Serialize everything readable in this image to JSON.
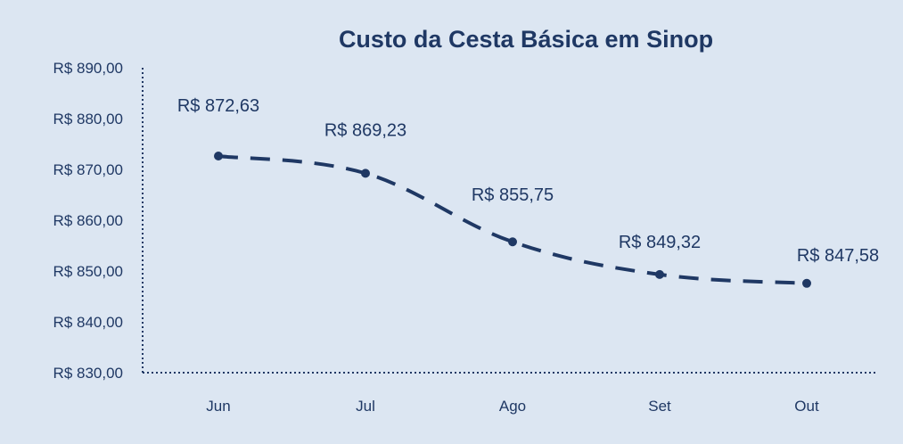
{
  "chart_data": {
    "type": "line",
    "title": "Custo da Cesta Básica em Sinop",
    "xlabel": "",
    "ylabel": "",
    "categories": [
      "Jun",
      "Jul",
      "Ago",
      "Set",
      "Out"
    ],
    "series": [
      {
        "values": [
          872.63,
          869.23,
          855.75,
          849.32,
          847.58
        ],
        "labels": [
          "R$ 872,63",
          "R$ 869,23",
          "R$ 855,75",
          "R$ 849,32",
          "R$ 847,58"
        ]
      }
    ],
    "y_ticks": [
      {
        "value": 830,
        "label": "R$ 830,00"
      },
      {
        "value": 840,
        "label": "R$ 840,00"
      },
      {
        "value": 850,
        "label": "R$ 850,00"
      },
      {
        "value": 860,
        "label": "R$ 860,00"
      },
      {
        "value": 870,
        "label": "R$ 870,00"
      },
      {
        "value": 880,
        "label": "R$ 880,00"
      },
      {
        "value": 890,
        "label": "R$ 890,00"
      }
    ],
    "ylim": [
      830,
      890
    ],
    "grid": false,
    "legend": "none",
    "line_style": "dashed-smooth",
    "colors": {
      "background": "#dce6f2",
      "text": "#1f3864",
      "line": "#1f3864",
      "axis": "#1f3864"
    }
  }
}
